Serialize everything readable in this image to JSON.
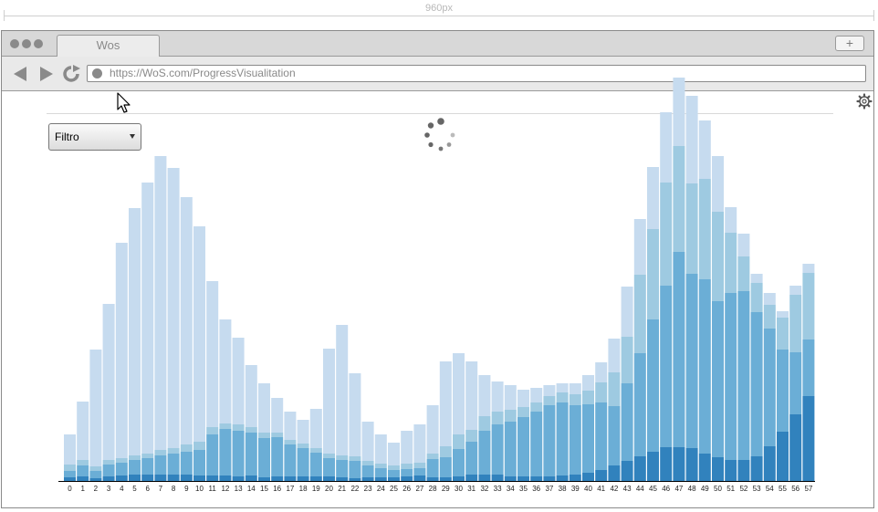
{
  "ruler": {
    "label": "960px"
  },
  "browser": {
    "tab_title": "Wos",
    "new_tab_label": "+",
    "url": "https://WoS.com/ProgressVisualitation"
  },
  "toolbar": {
    "filter_label": "Filtro"
  },
  "icons": [
    "back-icon",
    "forward-icon",
    "reload-icon",
    "gear-icon",
    "loading-spinner-icon",
    "mouse-cursor-icon"
  ],
  "colors": {
    "series": [
      "#3182bd",
      "#6baed6",
      "#9ecae1",
      "#c6dbef"
    ]
  },
  "chart_data": {
    "type": "bar",
    "stacked": true,
    "categories": [
      "0",
      "1",
      "2",
      "3",
      "4",
      "5",
      "6",
      "7",
      "8",
      "9",
      "10",
      "11",
      "12",
      "13",
      "14",
      "15",
      "16",
      "17",
      "18",
      "19",
      "20",
      "21",
      "22",
      "23",
      "24",
      "25",
      "26",
      "27",
      "28",
      "29",
      "30",
      "31",
      "32",
      "33",
      "34",
      "35",
      "36",
      "37",
      "38",
      "39",
      "40",
      "41",
      "42",
      "43",
      "44",
      "45",
      "46",
      "47",
      "48",
      "49",
      "50",
      "51",
      "52",
      "53",
      "54",
      "55",
      "56",
      "57"
    ],
    "series": [
      {
        "values": [
          4,
          5,
          3,
          5,
          6,
          7,
          7,
          7,
          7,
          7,
          6,
          6,
          6,
          5,
          6,
          4,
          5,
          5,
          5,
          5,
          5,
          4,
          3,
          4,
          4,
          4,
          5,
          6,
          4,
          4,
          5,
          7,
          7,
          7,
          5,
          5,
          5,
          5,
          6,
          7,
          9,
          12,
          17,
          22,
          27,
          32,
          37,
          37,
          36,
          30,
          26,
          23,
          23,
          27,
          38,
          54,
          73,
          93
        ]
      },
      {
        "values": [
          7,
          12,
          8,
          13,
          14,
          16,
          18,
          21,
          23,
          25,
          28,
          45,
          51,
          50,
          47,
          43,
          43,
          35,
          31,
          26,
          20,
          19,
          19,
          13,
          10,
          8,
          8,
          8,
          20,
          22,
          30,
          36,
          48,
          55,
          60,
          65,
          71,
          78,
          80,
          76,
          75,
          74,
          65,
          85,
          113,
          145,
          177,
          214,
          191,
          191,
          171,
          183,
          185,
          158,
          129,
          90,
          68,
          62
        ]
      },
      {
        "values": [
          7,
          6,
          5,
          5,
          5,
          5,
          5,
          6,
          6,
          8,
          9,
          8,
          6,
          7,
          6,
          6,
          5,
          5,
          5,
          5,
          5,
          5,
          5,
          5,
          5,
          5,
          6,
          6,
          6,
          12,
          16,
          13,
          16,
          14,
          13,
          11,
          10,
          10,
          11,
          12,
          15,
          22,
          37,
          51,
          86,
          99,
          113,
          116,
          99,
          110,
          98,
          66,
          38,
          32,
          26,
          35,
          63,
          73
        ]
      },
      {
        "values": [
          33,
          64,
          128,
          171,
          236,
          271,
          297,
          322,
          307,
          271,
          236,
          160,
          114,
          95,
          68,
          54,
          38,
          31,
          26,
          43,
          115,
          143,
          91,
          43,
          32,
          25,
          36,
          42,
          53,
          93,
          89,
          75,
          45,
          33,
          27,
          19,
          16,
          12,
          10,
          12,
          17,
          22,
          37,
          55,
          61,
          68,
          77,
          75,
          96,
          64,
          61,
          28,
          25,
          10,
          13,
          7,
          10,
          10
        ]
      }
    ],
    "xlabel": "",
    "ylabel": "",
    "grid": false,
    "legend": false
  }
}
